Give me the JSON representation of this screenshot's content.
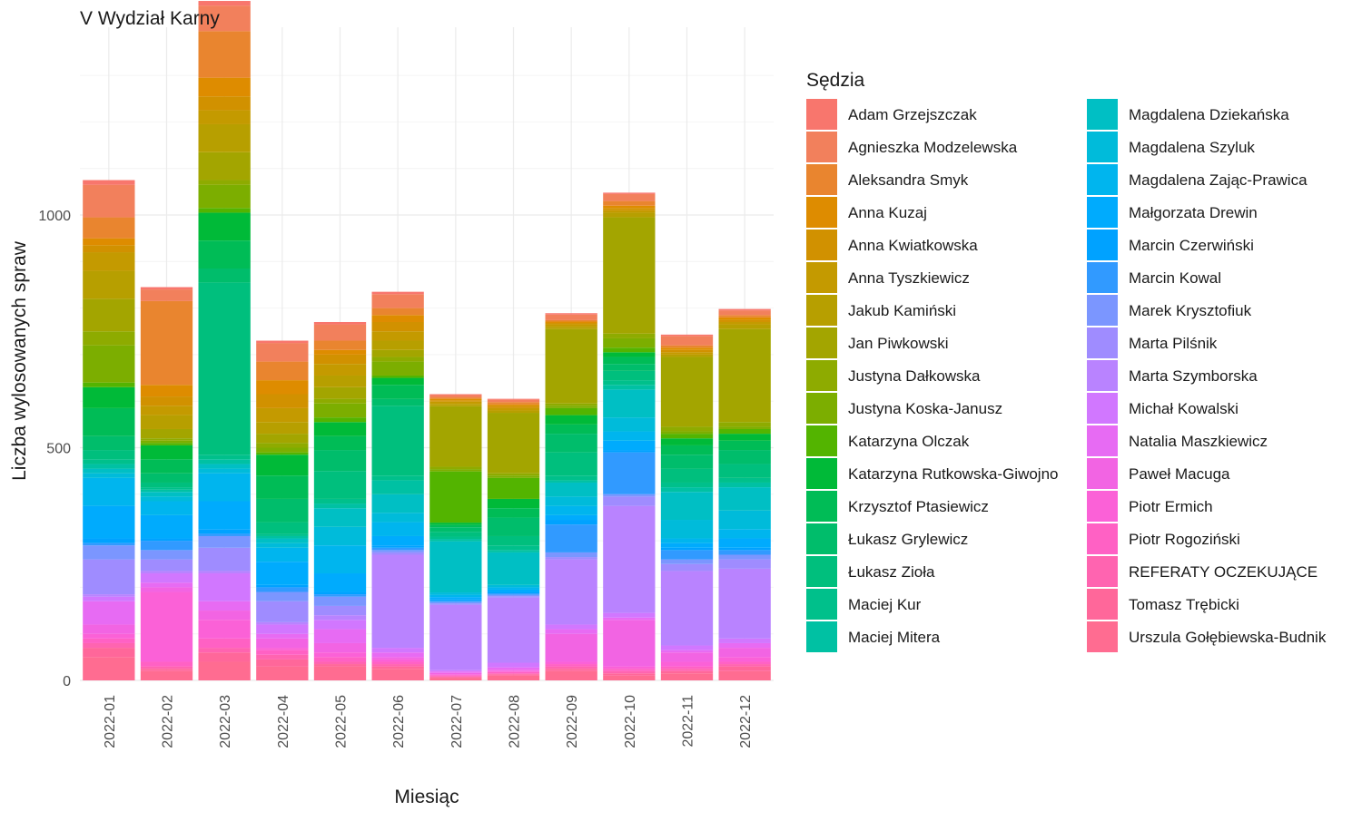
{
  "chart_data": {
    "type": "bar",
    "stacked": true,
    "title": "V Wydział Karny",
    "xlabel": "Miesiąc",
    "ylabel": "Liczba wylosowanych spraw",
    "ylim": [
      0,
      1370
    ],
    "yticks": [
      0,
      500,
      1000
    ],
    "grid": true,
    "legend_title": "Sędzia",
    "legend_position": "right",
    "categories": [
      "2022-01",
      "2022-02",
      "2022-03",
      "2022-04",
      "2022-05",
      "2022-06",
      "2022-07",
      "2022-08",
      "2022-09",
      "2022-10",
      "2022-11",
      "2022-12"
    ],
    "series": [
      {
        "name": "Adam Grzejszczak",
        "color": "#F8766D",
        "values": [
          10,
          5,
          10,
          5,
          5,
          5,
          2,
          2,
          3,
          3,
          3,
          3
        ]
      },
      {
        "name": "Agnieszka Modzelewska",
        "color": "#F2805C",
        "values": [
          70,
          25,
          55,
          40,
          35,
          30,
          5,
          5,
          12,
          15,
          20,
          10
        ]
      },
      {
        "name": "Aleksandra Smyk",
        "color": "#E9852F",
        "values": [
          45,
          180,
          100,
          40,
          20,
          15,
          3,
          5,
          3,
          10,
          5,
          5
        ]
      },
      {
        "name": "Anna Kuzaj",
        "color": "#DE8C00",
        "values": [
          15,
          25,
          40,
          30,
          10,
          15,
          3,
          3,
          3,
          5,
          5,
          5
        ]
      },
      {
        "name": "Anna Kwiatkowska",
        "color": "#D19100",
        "values": [
          15,
          20,
          30,
          30,
          20,
          20,
          3,
          5,
          3,
          5,
          5,
          5
        ]
      },
      {
        "name": "Anna Tyszkiewicz",
        "color": "#C49A00",
        "values": [
          40,
          20,
          30,
          30,
          25,
          20,
          5,
          5,
          5,
          5,
          5,
          5
        ]
      },
      {
        "name": "Jakub Kamiński",
        "color": "#B79F00",
        "values": [
          60,
          30,
          60,
          25,
          25,
          20,
          5,
          5,
          5,
          10,
          5,
          10
        ]
      },
      {
        "name": "Jan Piwkowski",
        "color": "#A3A500",
        "values": [
          70,
          20,
          60,
          20,
          25,
          15,
          130,
          130,
          160,
          250,
          150,
          200
        ]
      },
      {
        "name": "Justyna Dałkowska",
        "color": "#8EAB00",
        "values": [
          30,
          5,
          10,
          10,
          10,
          10,
          5,
          5,
          5,
          10,
          10,
          10
        ]
      },
      {
        "name": "Justyna Koska-Janusz",
        "color": "#7CAE00",
        "values": [
          80,
          5,
          50,
          10,
          30,
          30,
          5,
          5,
          5,
          20,
          5,
          5
        ]
      },
      {
        "name": "Katarzyna Olczak",
        "color": "#53B400",
        "values": [
          10,
          5,
          10,
          5,
          10,
          5,
          110,
          45,
          15,
          10,
          10,
          10
        ]
      },
      {
        "name": "Katarzyna Rutkowska-Giwojno",
        "color": "#00BA38",
        "values": [
          45,
          30,
          60,
          45,
          30,
          15,
          5,
          20,
          20,
          10,
          15,
          15
        ]
      },
      {
        "name": "Krzysztof Ptasiewicz",
        "color": "#00BC56",
        "values": [
          60,
          30,
          60,
          50,
          30,
          30,
          5,
          20,
          20,
          15,
          20,
          20
        ]
      },
      {
        "name": "Łukasz Grylewicz",
        "color": "#00BD6B",
        "values": [
          30,
          20,
          30,
          50,
          45,
          15,
          10,
          40,
          40,
          15,
          30,
          30
        ]
      },
      {
        "name": "Łukasz Zioła",
        "color": "#00BF7D",
        "values": [
          20,
          10,
          370,
          25,
          60,
          150,
          10,
          20,
          50,
          20,
          30,
          30
        ]
      },
      {
        "name": "Maciej Kur",
        "color": "#00C08B",
        "values": [
          10,
          5,
          10,
          5,
          10,
          10,
          5,
          10,
          10,
          10,
          10,
          10
        ]
      },
      {
        "name": "Maciej Mitera",
        "color": "#00C1A3",
        "values": [
          10,
          5,
          10,
          5,
          10,
          30,
          5,
          5,
          5,
          10,
          10,
          10
        ]
      },
      {
        "name": "Magdalena Dziekańska",
        "color": "#00BFC4",
        "values": [
          10,
          10,
          10,
          10,
          40,
          40,
          110,
          70,
          30,
          60,
          60,
          50
        ]
      },
      {
        "name": "Magdalena Szyluk",
        "color": "#00BBDA",
        "values": [
          10,
          10,
          10,
          10,
          40,
          20,
          5,
          5,
          20,
          30,
          40,
          40
        ]
      },
      {
        "name": "Magdalena Zając-Prawica",
        "color": "#00B5EE",
        "values": [
          60,
          30,
          60,
          30,
          60,
          30,
          5,
          5,
          20,
          20,
          10,
          20
        ]
      },
      {
        "name": "Małgorzata Drewin",
        "color": "#00ABFD",
        "values": [
          70,
          50,
          60,
          50,
          40,
          20,
          5,
          5,
          10,
          20,
          10,
          20
        ]
      },
      {
        "name": "Marcin Czerwiński",
        "color": "#00A2FF",
        "values": [
          10,
          5,
          10,
          5,
          5,
          5,
          3,
          3,
          10,
          5,
          5,
          5
        ]
      },
      {
        "name": "Marcin Kowal",
        "color": "#319AFF",
        "values": [
          5,
          20,
          5,
          10,
          5,
          5,
          3,
          3,
          60,
          90,
          20,
          10
        ]
      },
      {
        "name": "Marek Krysztofiuk",
        "color": "#7B96FF",
        "values": [
          30,
          20,
          25,
          20,
          20,
          5,
          3,
          3,
          10,
          5,
          10,
          10
        ]
      },
      {
        "name": "Marta Pilśnik",
        "color": "#9F8CFF",
        "values": [
          75,
          25,
          50,
          45,
          20,
          5,
          3,
          3,
          5,
          20,
          15,
          20
        ]
      },
      {
        "name": "Marta Szymborska",
        "color": "#B983FF",
        "values": [
          5,
          5,
          5,
          5,
          10,
          200,
          140,
          140,
          140,
          230,
          160,
          150
        ]
      },
      {
        "name": "Michał Kowalski",
        "color": "#D177FF",
        "values": [
          10,
          20,
          60,
          20,
          20,
          10,
          3,
          10,
          10,
          10,
          10,
          10
        ]
      },
      {
        "name": "Natalia Maszkiewicz",
        "color": "#E76BF3",
        "values": [
          50,
          10,
          20,
          10,
          30,
          10,
          3,
          5,
          10,
          5,
          5,
          10
        ]
      },
      {
        "name": "Paweł Macuga",
        "color": "#F264E3",
        "values": [
          20,
          10,
          20,
          20,
          20,
          5,
          3,
          3,
          60,
          100,
          20,
          20
        ]
      },
      {
        "name": "Piotr Ermich",
        "color": "#FB61D7",
        "values": [
          10,
          150,
          40,
          5,
          10,
          5,
          2,
          2,
          5,
          5,
          10,
          10
        ]
      },
      {
        "name": "Piotr Rogoziński",
        "color": "#FF61C4",
        "values": [
          10,
          10,
          20,
          10,
          10,
          5,
          2,
          3,
          5,
          5,
          5,
          5
        ]
      },
      {
        "name": "REFERATY OCZEKUJĄCE",
        "color": "#FF64B0",
        "values": [
          10,
          5,
          10,
          10,
          5,
          5,
          2,
          2,
          5,
          5,
          5,
          5
        ]
      },
      {
        "name": "Tomasz Trębicki",
        "color": "#FF679A",
        "values": [
          20,
          5,
          20,
          15,
          5,
          5,
          2,
          3,
          5,
          5,
          5,
          10
        ]
      },
      {
        "name": "Urszula Gołębiewska-Budnik",
        "color": "#FF6C91",
        "values": [
          50,
          20,
          40,
          30,
          30,
          25,
          5,
          10,
          20,
          10,
          15,
          20
        ]
      }
    ]
  }
}
